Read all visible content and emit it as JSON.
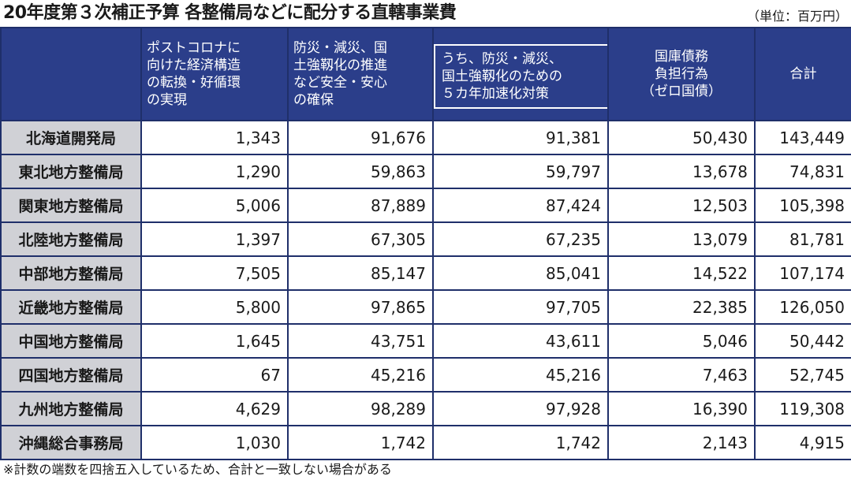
{
  "title": "20年度第３次補正予算 各整備局などに配分する直轄事業費",
  "unit": "（単位：百万円）",
  "headers": [
    "",
    "ポストコロナに\n向けた経済構造\nの転換・好循環\nの実現",
    "防災・減災、国\n土強靱化の推進\nなど安全・安心\nの確保",
    "うち、防災・減災、\n国土強靱化のための\n５カ年加速化対策",
    "国庫債務\n負担行為\n（ゼロ国債）",
    "合計"
  ],
  "rows": [
    {
      "name": "北海道開発局",
      "values": [
        "1,343",
        "91,676",
        "91,381",
        "50,430",
        "143,449"
      ]
    },
    {
      "name": "東北地方整備局",
      "values": [
        "1,290",
        "59,863",
        "59,797",
        "13,678",
        "74,831"
      ]
    },
    {
      "name": "関東地方整備局",
      "values": [
        "5,006",
        "87,889",
        "87,424",
        "12,503",
        "105,398"
      ]
    },
    {
      "name": "北陸地方整備局",
      "values": [
        "1,397",
        "67,305",
        "67,235",
        "13,079",
        "81,781"
      ]
    },
    {
      "name": "中部地方整備局",
      "values": [
        "7,505",
        "85,147",
        "85,041",
        "14,522",
        "107,174"
      ]
    },
    {
      "name": "近畿地方整備局",
      "values": [
        "5,800",
        "97,865",
        "97,705",
        "22,385",
        "126,050"
      ]
    },
    {
      "name": "中国地方整備局",
      "values": [
        "1,645",
        "43,751",
        "43,611",
        "5,046",
        "50,442"
      ]
    },
    {
      "name": "四国地方整備局",
      "values": [
        "67",
        "45,216",
        "45,216",
        "7,463",
        "52,745"
      ]
    },
    {
      "name": "九州地方整備局",
      "values": [
        "4,629",
        "98,289",
        "97,928",
        "16,390",
        "119,308"
      ]
    },
    {
      "name": "沖縄総合事務局",
      "values": [
        "1,030",
        "1,742",
        "1,742",
        "2,143",
        "4,915"
      ]
    }
  ],
  "note": "※計数の端数を四捨五入しているため、合計と一致しない場合がある",
  "colors": {
    "header_bg": "#2b3e8a",
    "border": "#1f2f6a",
    "row_label_bg": "#d0d1d6"
  }
}
